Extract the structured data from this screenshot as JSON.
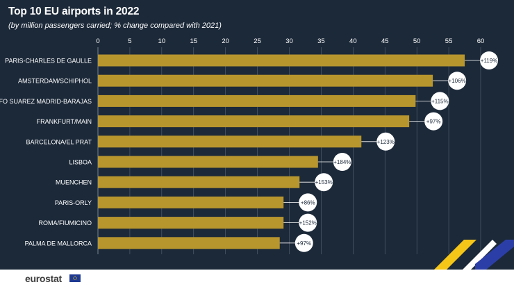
{
  "header": {
    "title": "Top 10 EU airports in 2022",
    "subtitle": "(by million passengers carried; % change compared with 2021)"
  },
  "footer": {
    "brand": "eurostat"
  },
  "colors": {
    "background": "#1c2939",
    "bar": "#b8962e",
    "gridline": "#5a6676",
    "text": "#ffffff",
    "bubble": "#ffffff",
    "bubble_text": "#1c2939",
    "accent_yellow": "#f5c518",
    "accent_blue": "#2b3ea8"
  },
  "chart_data": {
    "type": "bar",
    "orientation": "horizontal",
    "title": "Top 10 EU airports in 2022",
    "subtitle": "(by million passengers carried; % change compared with 2021)",
    "xlabel": "",
    "ylabel": "",
    "xlim": [
      0,
      60
    ],
    "ticks": [
      0,
      5,
      10,
      15,
      20,
      25,
      30,
      35,
      40,
      45,
      50,
      55,
      60
    ],
    "grid": true,
    "categories": [
      "PARIS-CHARLES DE GAULLE",
      "AMSTERDAM/SCHIPHOL",
      "ADOLFO SUAREZ MADRID-BARAJAS",
      "FRANKFURT/MAIN",
      "BARCELONA/EL PRAT",
      "LISBOA",
      "MUENCHEN",
      "PARIS-ORLY",
      "ROMA/FIUMICINO",
      "PALMA DE MALLORCA"
    ],
    "values": [
      57.5,
      52.5,
      49.8,
      48.8,
      41.3,
      34.5,
      31.6,
      29.1,
      29.1,
      28.5
    ],
    "change_labels": [
      "+119%",
      "+106%",
      "+115%",
      "+97%",
      "+123%",
      "+184%",
      "+153%",
      "+86%",
      "+152%",
      "+97%"
    ]
  }
}
